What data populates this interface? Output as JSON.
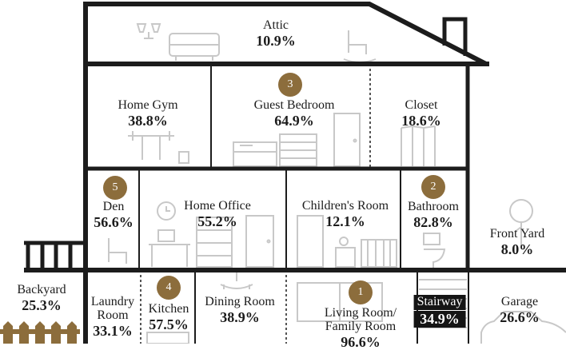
{
  "rooms": {
    "attic": {
      "name": "Attic",
      "pct": "10.9%"
    },
    "home_gym": {
      "name": "Home Gym",
      "pct": "38.8%"
    },
    "guest_bedroom": {
      "name": "Guest Bedroom",
      "pct": "64.9%",
      "rank": "3"
    },
    "closet": {
      "name": "Closet",
      "pct": "18.6%"
    },
    "den": {
      "name": "Den",
      "pct": "56.6%",
      "rank": "5"
    },
    "home_office": {
      "name": "Home Office",
      "pct": "55.2%"
    },
    "childrens_room": {
      "name": "Children's Room",
      "pct": "12.1%"
    },
    "bathroom": {
      "name": "Bathroom",
      "pct": "82.8%",
      "rank": "2"
    },
    "front_yard": {
      "name": "Front Yard",
      "pct": "8.0%"
    },
    "backyard": {
      "name": "Backyard",
      "pct": "25.3%"
    },
    "laundry_room": {
      "name_line1": "Laundry",
      "name_line2": "Room",
      "pct": "33.1%"
    },
    "kitchen": {
      "name": "Kitchen",
      "pct": "57.5%",
      "rank": "4"
    },
    "dining_room": {
      "name": "Dining Room",
      "pct": "38.9%"
    },
    "living_room": {
      "name_line1": "Living Room/",
      "name_line2": "Family Room",
      "pct": "96.6%",
      "rank": "1"
    },
    "stairway": {
      "name": "Stairway",
      "pct": "34.9%"
    },
    "garage": {
      "name": "Garage",
      "pct": "26.6%"
    }
  },
  "colors": {
    "wall": "#1c1c1c",
    "badge": "#8c6d3c",
    "furniture": "#c8c8c8",
    "fence": "#8c6d3c"
  }
}
